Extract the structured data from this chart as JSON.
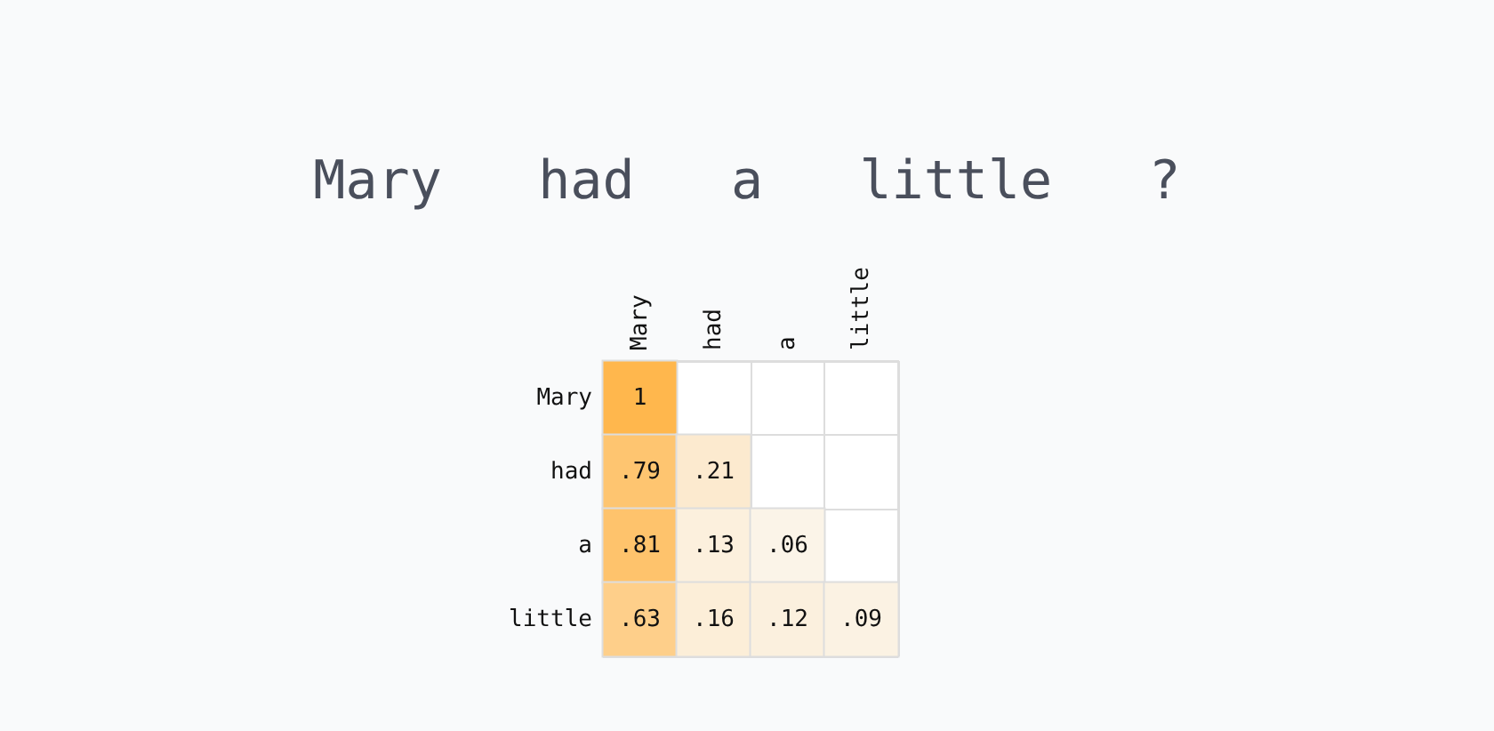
{
  "chart_data": {
    "type": "heatmap",
    "title": "Mary   had   a   little   ?",
    "categories": [
      "Mary",
      "had",
      "a",
      "little"
    ],
    "y_categories": [
      "Mary",
      "had",
      "a",
      "little"
    ],
    "cells": [
      [
        1,
        null,
        null,
        null
      ],
      [
        0.79,
        0.21,
        null,
        null
      ],
      [
        0.81,
        0.13,
        0.06,
        null
      ],
      [
        0.63,
        0.16,
        0.12,
        0.09
      ]
    ],
    "cell_labels": [
      [
        "1",
        null,
        null,
        null
      ],
      [
        ".79",
        ".21",
        null,
        null
      ],
      [
        ".81",
        ".13",
        ".06",
        null
      ],
      [
        ".63",
        ".16",
        ".12",
        ".09"
      ]
    ]
  }
}
